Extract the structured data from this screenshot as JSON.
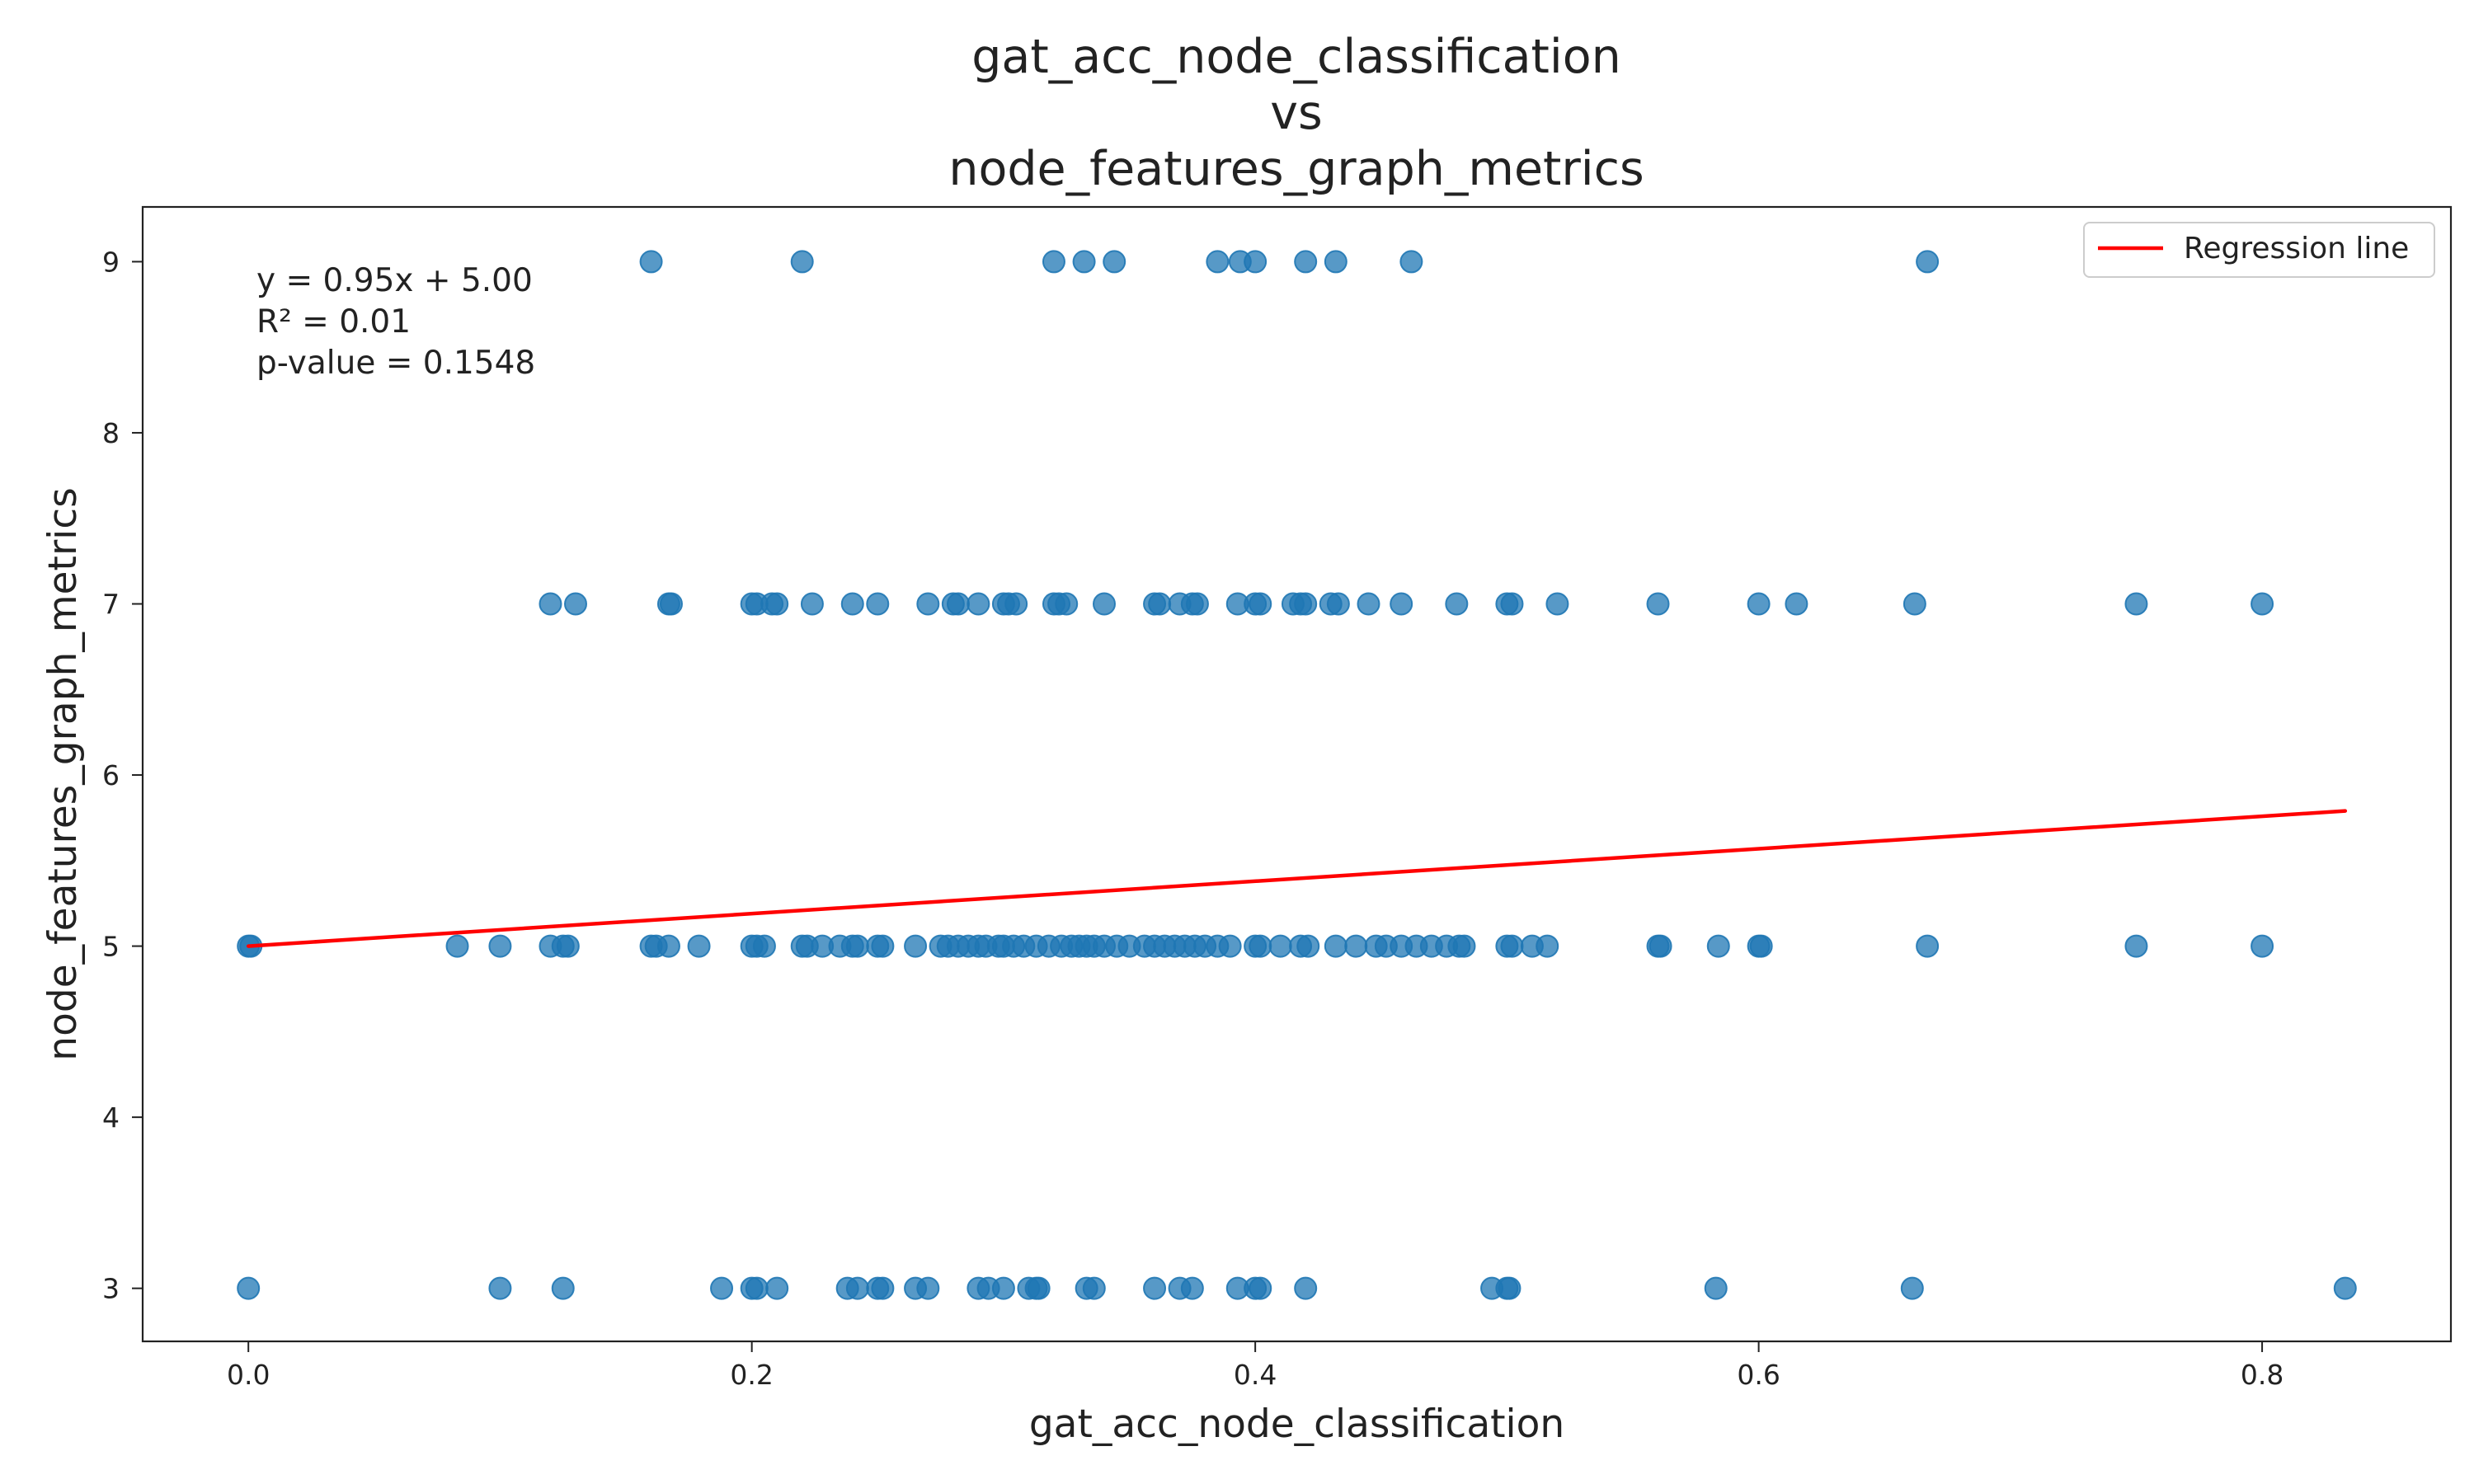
{
  "chart_data": {
    "type": "scatter",
    "title_lines": [
      "gat_acc_node_classification",
      "vs",
      "node_features_graph_metrics"
    ],
    "xlabel": "gat_acc_node_classification",
    "ylabel": "node_features_graph_metrics",
    "xlim": [
      -0.042,
      0.875
    ],
    "ylim": [
      2.69,
      9.32
    ],
    "xticks": [
      0.0,
      0.2,
      0.4,
      0.6,
      0.8
    ],
    "xtick_labels": [
      "0.0",
      "0.2",
      "0.4",
      "0.6",
      "0.8"
    ],
    "yticks": [
      3,
      4,
      5,
      6,
      7,
      8,
      9
    ],
    "ytick_labels": [
      "3",
      "4",
      "5",
      "6",
      "7",
      "8",
      "9"
    ],
    "grid": false,
    "point_color": "#1f77b4",
    "series": [
      {
        "points": [
          [
            0.16,
            9
          ],
          [
            0.22,
            9
          ],
          [
            0.32,
            9
          ],
          [
            0.332,
            9
          ],
          [
            0.344,
            9
          ],
          [
            0.385,
            9
          ],
          [
            0.394,
            9
          ],
          [
            0.4,
            9
          ],
          [
            0.42,
            9
          ],
          [
            0.432,
            9
          ],
          [
            0.462,
            9
          ],
          [
            0.667,
            9
          ],
          [
            0.12,
            7
          ],
          [
            0.13,
            7
          ],
          [
            0.167,
            7
          ],
          [
            0.168,
            7
          ],
          [
            0.2,
            7
          ],
          [
            0.202,
            7
          ],
          [
            0.208,
            7
          ],
          [
            0.21,
            7
          ],
          [
            0.224,
            7
          ],
          [
            0.24,
            7
          ],
          [
            0.25,
            7
          ],
          [
            0.27,
            7
          ],
          [
            0.28,
            7
          ],
          [
            0.282,
            7
          ],
          [
            0.29,
            7
          ],
          [
            0.3,
            7
          ],
          [
            0.302,
            7
          ],
          [
            0.305,
            7
          ],
          [
            0.32,
            7
          ],
          [
            0.322,
            7
          ],
          [
            0.325,
            7
          ],
          [
            0.34,
            7
          ],
          [
            0.36,
            7
          ],
          [
            0.362,
            7
          ],
          [
            0.37,
            7
          ],
          [
            0.375,
            7
          ],
          [
            0.377,
            7
          ],
          [
            0.393,
            7
          ],
          [
            0.4,
            7
          ],
          [
            0.402,
            7
          ],
          [
            0.415,
            7
          ],
          [
            0.418,
            7
          ],
          [
            0.42,
            7
          ],
          [
            0.43,
            7
          ],
          [
            0.433,
            7
          ],
          [
            0.445,
            7
          ],
          [
            0.458,
            7
          ],
          [
            0.48,
            7
          ],
          [
            0.5,
            7
          ],
          [
            0.502,
            7
          ],
          [
            0.52,
            7
          ],
          [
            0.56,
            7
          ],
          [
            0.6,
            7
          ],
          [
            0.615,
            7
          ],
          [
            0.662,
            7
          ],
          [
            0.75,
            7
          ],
          [
            0.8,
            7
          ],
          [
            0.0,
            5
          ],
          [
            0.001,
            5
          ],
          [
            0.083,
            5
          ],
          [
            0.1,
            5
          ],
          [
            0.12,
            5
          ],
          [
            0.125,
            5
          ],
          [
            0.127,
            5
          ],
          [
            0.16,
            5
          ],
          [
            0.162,
            5
          ],
          [
            0.167,
            5
          ],
          [
            0.179,
            5
          ],
          [
            0.2,
            5
          ],
          [
            0.202,
            5
          ],
          [
            0.205,
            5
          ],
          [
            0.22,
            5
          ],
          [
            0.222,
            5
          ],
          [
            0.228,
            5
          ],
          [
            0.235,
            5
          ],
          [
            0.24,
            5
          ],
          [
            0.242,
            5
          ],
          [
            0.25,
            5
          ],
          [
            0.252,
            5
          ],
          [
            0.265,
            5
          ],
          [
            0.275,
            5
          ],
          [
            0.278,
            5
          ],
          [
            0.282,
            5
          ],
          [
            0.286,
            5
          ],
          [
            0.29,
            5
          ],
          [
            0.293,
            5
          ],
          [
            0.298,
            5
          ],
          [
            0.3,
            5
          ],
          [
            0.304,
            5
          ],
          [
            0.308,
            5
          ],
          [
            0.313,
            5
          ],
          [
            0.318,
            5
          ],
          [
            0.323,
            5
          ],
          [
            0.327,
            5
          ],
          [
            0.33,
            5
          ],
          [
            0.333,
            5
          ],
          [
            0.336,
            5
          ],
          [
            0.34,
            5
          ],
          [
            0.345,
            5
          ],
          [
            0.35,
            5
          ],
          [
            0.356,
            5
          ],
          [
            0.36,
            5
          ],
          [
            0.364,
            5
          ],
          [
            0.368,
            5
          ],
          [
            0.372,
            5
          ],
          [
            0.376,
            5
          ],
          [
            0.38,
            5
          ],
          [
            0.385,
            5
          ],
          [
            0.39,
            5
          ],
          [
            0.4,
            5
          ],
          [
            0.402,
            5
          ],
          [
            0.41,
            5
          ],
          [
            0.418,
            5
          ],
          [
            0.421,
            5
          ],
          [
            0.432,
            5
          ],
          [
            0.44,
            5
          ],
          [
            0.448,
            5
          ],
          [
            0.452,
            5
          ],
          [
            0.458,
            5
          ],
          [
            0.464,
            5
          ],
          [
            0.47,
            5
          ],
          [
            0.476,
            5
          ],
          [
            0.481,
            5
          ],
          [
            0.483,
            5
          ],
          [
            0.5,
            5
          ],
          [
            0.502,
            5
          ],
          [
            0.51,
            5
          ],
          [
            0.516,
            5
          ],
          [
            0.56,
            5
          ],
          [
            0.561,
            5
          ],
          [
            0.584,
            5
          ],
          [
            0.6,
            5
          ],
          [
            0.601,
            5
          ],
          [
            0.667,
            5
          ],
          [
            0.75,
            5
          ],
          [
            0.8,
            5
          ],
          [
            0.0,
            3
          ],
          [
            0.1,
            3
          ],
          [
            0.125,
            3
          ],
          [
            0.188,
            3
          ],
          [
            0.2,
            3
          ],
          [
            0.202,
            3
          ],
          [
            0.21,
            3
          ],
          [
            0.238,
            3
          ],
          [
            0.242,
            3
          ],
          [
            0.25,
            3
          ],
          [
            0.252,
            3
          ],
          [
            0.265,
            3
          ],
          [
            0.27,
            3
          ],
          [
            0.29,
            3
          ],
          [
            0.294,
            3
          ],
          [
            0.3,
            3
          ],
          [
            0.31,
            3
          ],
          [
            0.313,
            3
          ],
          [
            0.314,
            3
          ],
          [
            0.333,
            3
          ],
          [
            0.336,
            3
          ],
          [
            0.36,
            3
          ],
          [
            0.37,
            3
          ],
          [
            0.375,
            3
          ],
          [
            0.393,
            3
          ],
          [
            0.4,
            3
          ],
          [
            0.402,
            3
          ],
          [
            0.42,
            3
          ],
          [
            0.494,
            3
          ],
          [
            0.5,
            3
          ],
          [
            0.501,
            3
          ],
          [
            0.583,
            3
          ],
          [
            0.661,
            3
          ],
          [
            0.833,
            3
          ]
        ]
      },
      {
        "name": "Regression line",
        "type": "line",
        "color": "#ff0000",
        "x": [
          0.0,
          0.833
        ],
        "y": [
          5.0,
          5.79
        ]
      }
    ],
    "annotation_lines": [
      "y = 0.95x + 5.00",
      "R² = 0.01",
      "p-value = 0.1548"
    ],
    "legend": {
      "placement": "top-right",
      "entries": [
        "Regression line"
      ]
    }
  }
}
